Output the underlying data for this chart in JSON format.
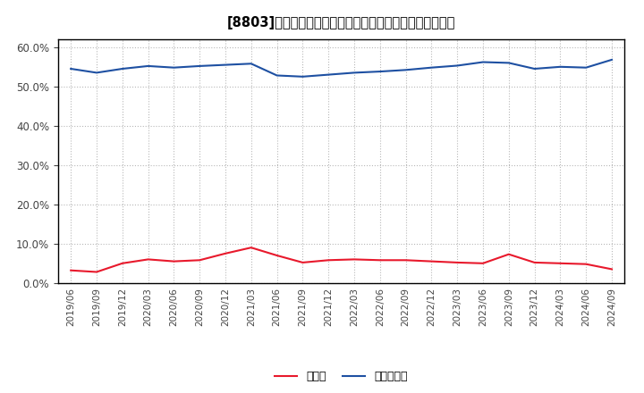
{
  "title": "[8803]　現須金、有利子負債の総資産に対する比率の推移",
  "x_labels": [
    "2019/06",
    "2019/09",
    "2019/12",
    "2020/03",
    "2020/06",
    "2020/09",
    "2020/12",
    "2021/03",
    "2021/06",
    "2021/09",
    "2021/12",
    "2022/03",
    "2022/06",
    "2022/09",
    "2022/12",
    "2023/03",
    "2023/06",
    "2023/09",
    "2023/12",
    "2024/03",
    "2024/06",
    "2024/09"
  ],
  "cash": [
    3.2,
    2.8,
    5.0,
    6.0,
    5.5,
    5.8,
    7.5,
    9.0,
    7.0,
    5.2,
    5.8,
    6.0,
    5.8,
    5.8,
    5.5,
    5.2,
    5.0,
    7.3,
    5.2,
    5.0,
    4.8,
    3.5
  ],
  "debt": [
    54.5,
    53.5,
    54.5,
    55.2,
    54.8,
    55.2,
    55.5,
    55.8,
    52.8,
    52.5,
    53.0,
    53.5,
    53.8,
    54.2,
    54.8,
    55.3,
    56.2,
    56.0,
    54.5,
    55.0,
    54.8,
    56.8
  ],
  "cash_color": "#e8192c",
  "debt_color": "#1e50a2",
  "background_color": "#ffffff",
  "grid_color": "#999999",
  "legend_cash": "現須金",
  "legend_debt": "有利子負債",
  "ylim_min": 0.0,
  "ylim_max": 62.0,
  "yticks": [
    0.0,
    10.0,
    20.0,
    30.0,
    40.0,
    50.0,
    60.0
  ]
}
